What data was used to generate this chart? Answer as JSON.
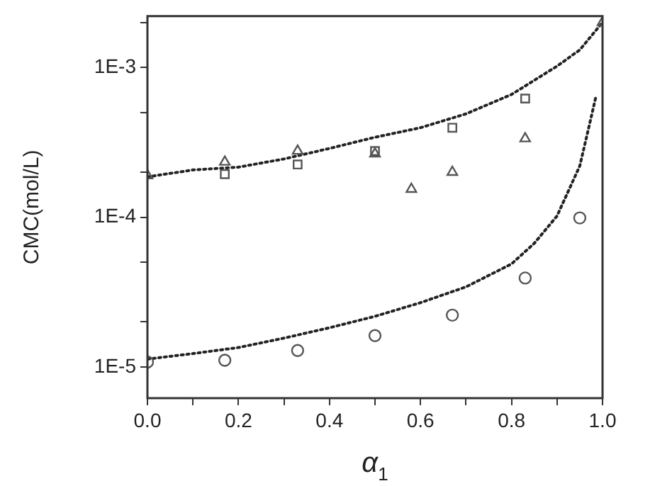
{
  "chart_data": {
    "type": "scatter",
    "xlabel": "α$_{1}$",
    "ylabel": "CMC(mol/L)",
    "log": "y",
    "grid": false,
    "legend": false,
    "xlim": [
      0,
      1
    ],
    "ylim": [
      6.2e-06,
      0.0022
    ],
    "xticks": [
      {
        "value": 0,
        "label": "0.0"
      },
      {
        "value": 0.1,
        "label": null
      },
      {
        "value": 0.2,
        "label": "0.2"
      },
      {
        "value": 0.3,
        "label": null
      },
      {
        "value": 0.4,
        "label": "0.4"
      },
      {
        "value": 0.5,
        "label": null
      },
      {
        "value": 0.6,
        "label": "0.6"
      },
      {
        "value": 0.7,
        "label": null
      },
      {
        "value": 0.8,
        "label": "0.8"
      },
      {
        "value": 0.9,
        "label": null
      },
      {
        "value": 1,
        "label": "1.0"
      }
    ],
    "yticks": [
      {
        "value": 1e-05,
        "label": "1E-5"
      },
      {
        "value": 2e-05,
        "label": null
      },
      {
        "value": 5e-05,
        "label": null
      },
      {
        "value": 0.0001,
        "label": "1E-4"
      },
      {
        "value": 0.0002,
        "label": null
      },
      {
        "value": 0.0005,
        "label": null
      },
      {
        "value": 0.001,
        "label": "1E-3"
      },
      {
        "value": 0.002,
        "label": null
      }
    ],
    "series": [
      {
        "type": "scatter",
        "marker": "square",
        "color": "#555555",
        "x": [
          0.17,
          0.33,
          0.5,
          0.67,
          0.83
        ],
        "values": [
          0.000194,
          0.000225,
          0.000277,
          0.000396,
          0.00062
        ]
      },
      {
        "type": "scatter",
        "marker": "triangle",
        "color": "#555555",
        "x": [
          0,
          0.17,
          0.33,
          0.5,
          0.58,
          0.67,
          0.83,
          1.0
        ],
        "values": [
          0.00019,
          0.000234,
          0.000277,
          0.000265,
          0.000154,
          0.0002,
          0.000335,
          0.002
        ]
      },
      {
        "type": "scatter",
        "marker": "circle",
        "color": "#555555",
        "x": [
          0,
          0.17,
          0.33,
          0.5,
          0.67,
          0.83,
          0.95
        ],
        "values": [
          1.08e-05,
          1.11e-05,
          1.29e-05,
          1.62e-05,
          2.22e-05,
          3.93e-05,
          9.9e-05
        ]
      },
      {
        "type": "line",
        "marker": "none",
        "line_style": "dotted",
        "color": "#222222",
        "x": [
          0,
          0.1,
          0.2,
          0.3,
          0.4,
          0.5,
          0.6,
          0.7,
          0.8,
          0.9,
          0.95,
          1.0
        ],
        "values": [
          0.000186,
          0.000207,
          0.000216,
          0.000245,
          0.000288,
          0.000342,
          0.000396,
          0.00049,
          0.00066,
          0.00102,
          0.00131,
          0.002
        ]
      },
      {
        "type": "line",
        "marker": "none",
        "line_style": "dotted",
        "color": "#222222",
        "x": [
          0,
          0.1,
          0.2,
          0.3,
          0.4,
          0.5,
          0.6,
          0.7,
          0.8,
          0.85,
          0.9,
          0.95,
          0.97,
          0.985
        ],
        "values": [
          1.13e-05,
          1.23e-05,
          1.35e-05,
          1.56e-05,
          1.83e-05,
          2.18e-05,
          2.69e-05,
          3.43e-05,
          4.88e-05,
          6.7e-05,
          0.000102,
          0.00022,
          0.0004,
          0.00063
        ]
      }
    ]
  }
}
